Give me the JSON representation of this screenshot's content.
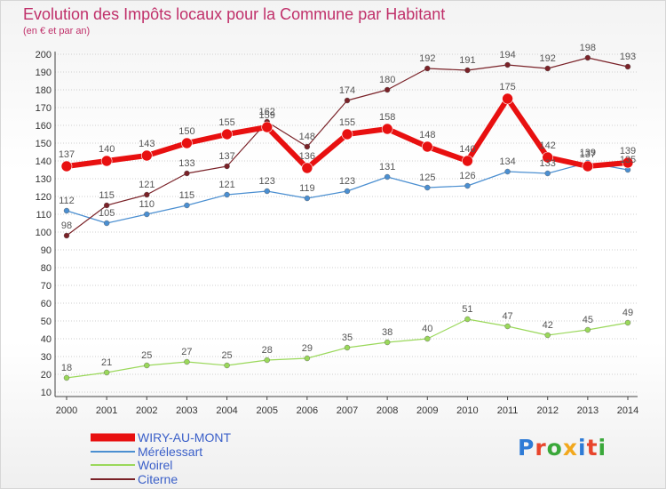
{
  "header": {
    "title": "Evolution des Impôts locaux pour la Commune par Habitant",
    "subtitle": "(en € et par an)"
  },
  "logo": {
    "text": "Proxiti",
    "colors": [
      "#2e7bd6",
      "#e8452c",
      "#3aa83a",
      "#f2a81d",
      "#2e7bd6",
      "#e8452c",
      "#3aa83a"
    ]
  },
  "chart_data": {
    "type": "line",
    "title": "Evolution des Impôts locaux pour la Commune par Habitant",
    "subtitle": "(en € et par an)",
    "x": [
      "2000",
      "2001",
      "2002",
      "2003",
      "2004",
      "2005",
      "2006",
      "2007",
      "2008",
      "2009",
      "2010",
      "2011",
      "2012",
      "2013",
      "2014"
    ],
    "ylim": [
      10,
      200
    ],
    "yticks": [
      10,
      20,
      30,
      40,
      50,
      60,
      70,
      80,
      90,
      100,
      110,
      120,
      130,
      140,
      150,
      160,
      170,
      180,
      190,
      200
    ],
    "grid": "horizontal dotted",
    "legend_position": "bottom-left",
    "series": [
      {
        "name": "WIRY-AU-MONT",
        "color": "#e81010",
        "values": [
          137,
          140,
          143,
          150,
          155,
          159,
          136,
          155,
          158,
          148,
          140,
          175,
          142,
          137,
          139
        ],
        "labels": [
          "137",
          "140",
          "143",
          "150",
          "155",
          "159",
          "136",
          "155",
          "158",
          "148",
          "140",
          "175",
          "142",
          "137",
          "139"
        ]
      },
      {
        "name": "Mérélessart",
        "color": "#4b8fd1",
        "values": [
          112,
          105,
          110,
          115,
          121,
          123,
          119,
          123,
          131,
          125,
          126,
          134,
          133,
          139,
          135
        ],
        "labels": [
          "112",
          "105",
          "110",
          "115",
          "121",
          "123",
          "119",
          "123",
          "131",
          "125",
          "126",
          "134",
          "133",
          "139",
          "135"
        ]
      },
      {
        "name": "Woirel",
        "color": "#9ad85a",
        "values": [
          18,
          21,
          25,
          27,
          25,
          28,
          29,
          35,
          38,
          40,
          51,
          47,
          42,
          45,
          49
        ],
        "labels": [
          "18",
          "21",
          "25",
          "27",
          "25",
          "28",
          "29",
          "35",
          "38",
          "40",
          "51",
          "47",
          "42",
          "45",
          "49"
        ]
      },
      {
        "name": "Citerne",
        "color": "#7a2228",
        "values": [
          98,
          115,
          121,
          133,
          137,
          162,
          148,
          174,
          180,
          192,
          191,
          194,
          192,
          198,
          193
        ],
        "labels": [
          "98",
          "115",
          "121",
          "133",
          "137",
          "162",
          "148",
          "174",
          "180",
          "192",
          "191",
          "194",
          "192",
          "198",
          "193"
        ]
      }
    ]
  }
}
